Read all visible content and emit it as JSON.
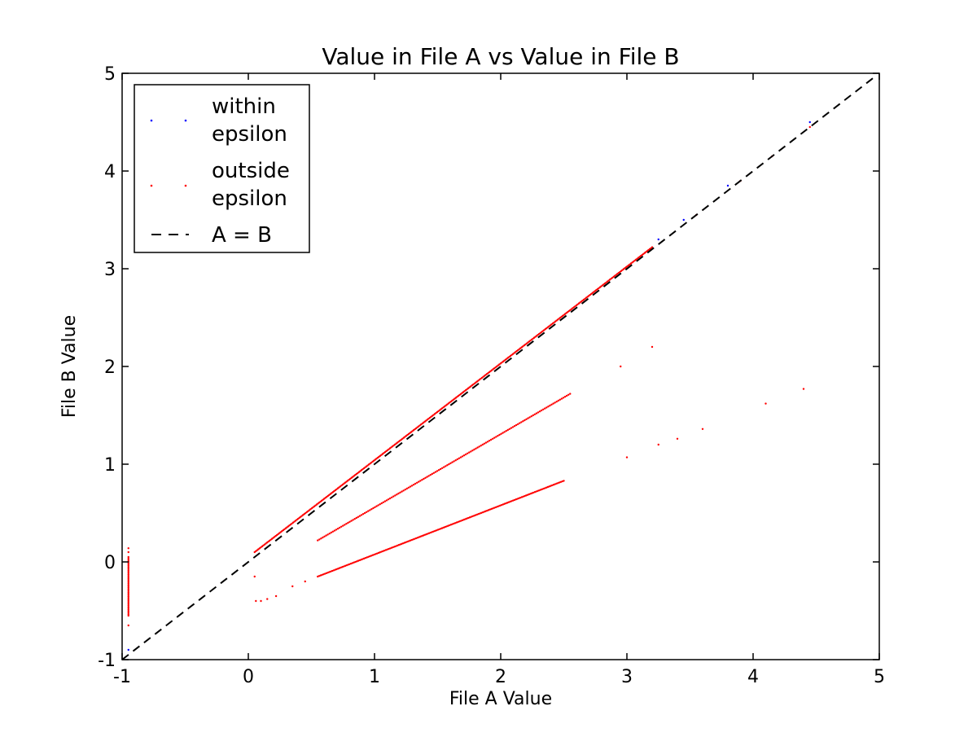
{
  "chart_data": {
    "type": "scatter",
    "title": "Value in File A vs Value in File B",
    "xlabel": "File A Value",
    "ylabel": "File B Value",
    "xlim": [
      -1,
      5
    ],
    "ylim": [
      -1,
      5
    ],
    "x_ticks": [
      -1,
      0,
      1,
      2,
      3,
      4,
      5
    ],
    "y_ticks": [
      -1,
      0,
      1,
      2,
      3,
      4,
      5
    ],
    "x_tick_labels": [
      "-1",
      "0",
      "1",
      "2",
      "3",
      "4",
      "5"
    ],
    "y_tick_labels": [
      "-1",
      "0",
      "1",
      "2",
      "3",
      "4",
      "5"
    ],
    "grid": false,
    "legend_position": "top-left",
    "series": [
      {
        "name": "within epsilon",
        "color": "#0000ff",
        "marker": "point",
        "points": [
          [
            -0.95,
            -0.9
          ],
          [
            3.25,
            3.3
          ],
          [
            3.45,
            3.5
          ],
          [
            3.8,
            3.85
          ],
          [
            4.45,
            4.5
          ]
        ]
      },
      {
        "name": "outside epsilon",
        "color": "#ff0000",
        "marker": "point",
        "segments": [
          {
            "from": [
              0.05,
              0.1
            ],
            "to": [
              3.2,
              3.22
            ],
            "n": 320
          },
          {
            "from": [
              0.55,
              0.22
            ],
            "to": [
              2.55,
              1.72
            ],
            "n": 150
          },
          {
            "from": [
              0.55,
              -0.15
            ],
            "to": [
              2.5,
              0.83
            ],
            "n": 170
          },
          {
            "from": [
              -0.95,
              -0.55
            ],
            "to": [
              -0.95,
              0.05
            ],
            "n": 40
          }
        ],
        "points": [
          [
            -0.95,
            0.1
          ],
          [
            -0.95,
            0.14
          ],
          [
            -0.95,
            -0.65
          ],
          [
            0.05,
            -0.15
          ],
          [
            0.06,
            -0.4
          ],
          [
            0.1,
            -0.4
          ],
          [
            0.15,
            -0.38
          ],
          [
            0.22,
            -0.35
          ],
          [
            0.35,
            -0.25
          ],
          [
            0.45,
            -0.2
          ],
          [
            2.95,
            2.0
          ],
          [
            3.2,
            2.2
          ],
          [
            3.0,
            1.07
          ],
          [
            3.25,
            1.2
          ],
          [
            3.4,
            1.26
          ],
          [
            3.6,
            1.36
          ],
          [
            4.1,
            1.62
          ],
          [
            4.4,
            1.77
          ],
          [
            3.55,
            3.55
          ],
          [
            3.9,
            3.9
          ],
          [
            4.15,
            4.15
          ],
          [
            4.45,
            4.45
          ]
        ]
      },
      {
        "name": "A = B",
        "color": "#000000",
        "style": "dashed",
        "line": [
          [
            -1,
            -1
          ],
          [
            4.95,
            4.95
          ]
        ]
      }
    ],
    "legend": {
      "entries": [
        {
          "label_line1": "within",
          "label_line2": "epsilon",
          "type": "point",
          "color": "#0000ff"
        },
        {
          "label_line1": "outside",
          "label_line2": "epsilon",
          "type": "point",
          "color": "#ff0000"
        },
        {
          "label_line1": "A = B",
          "label_line2": "",
          "type": "dashed",
          "color": "#000000"
        }
      ]
    }
  }
}
